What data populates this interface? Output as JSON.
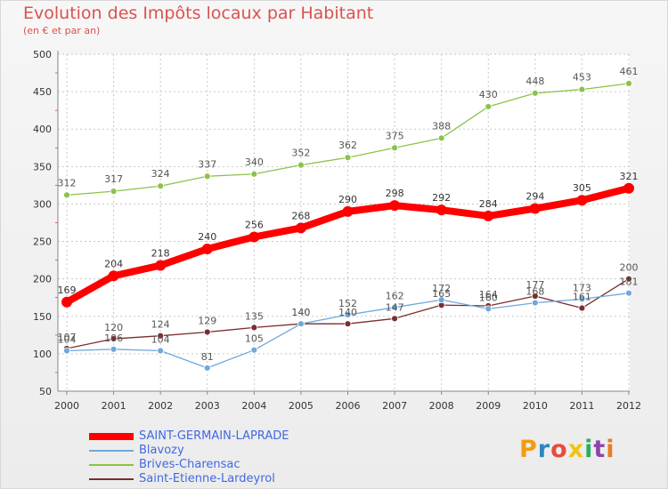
{
  "header": {
    "title": "Evolution des Impôts locaux par Habitant",
    "subtitle": "(en € et par an)"
  },
  "logo": {
    "letters": [
      "P",
      "r",
      "o",
      "x",
      "i",
      "t",
      "i"
    ],
    "colors": [
      "#f39c12",
      "#2e86c1",
      "#e74c3c",
      "#f1c40f",
      "#27ae60",
      "#8e44ad",
      "#e67e22"
    ]
  },
  "chart_data": {
    "type": "line",
    "title": "Evolution des Impôts locaux par Habitant",
    "subtitle": "(en € et par an)",
    "x": [
      "2000",
      "2001",
      "2002",
      "2003",
      "2004",
      "2005",
      "2006",
      "2007",
      "2008",
      "2009",
      "2010",
      "2011",
      "2012"
    ],
    "ylim": [
      50,
      500
    ],
    "yticks": [
      50,
      100,
      150,
      200,
      250,
      300,
      350,
      400,
      450,
      500
    ],
    "grid": true,
    "legend_position": "bottom-left",
    "series": [
      {
        "name": "SAINT-GERMAIN-LAPRADE",
        "color": "#ff0000",
        "values": [
          169,
          204,
          218,
          240,
          256,
          268,
          290,
          298,
          292,
          284,
          294,
          305,
          321
        ]
      },
      {
        "name": "Blavozy",
        "color": "#6fa8dc",
        "values": [
          104,
          106,
          104,
          81,
          105,
          140,
          152,
          162,
          172,
          160,
          168,
          173,
          181
        ]
      },
      {
        "name": "Brives-Charensac",
        "color": "#8bc34a",
        "values": [
          312,
          317,
          324,
          337,
          340,
          352,
          362,
          375,
          388,
          430,
          448,
          453,
          461
        ]
      },
      {
        "name": "Saint-Etienne-Lardeyrol",
        "color": "#7b2d2d",
        "values": [
          107,
          120,
          124,
          129,
          135,
          140,
          140,
          147,
          165,
          164,
          177,
          161,
          200
        ]
      }
    ]
  }
}
